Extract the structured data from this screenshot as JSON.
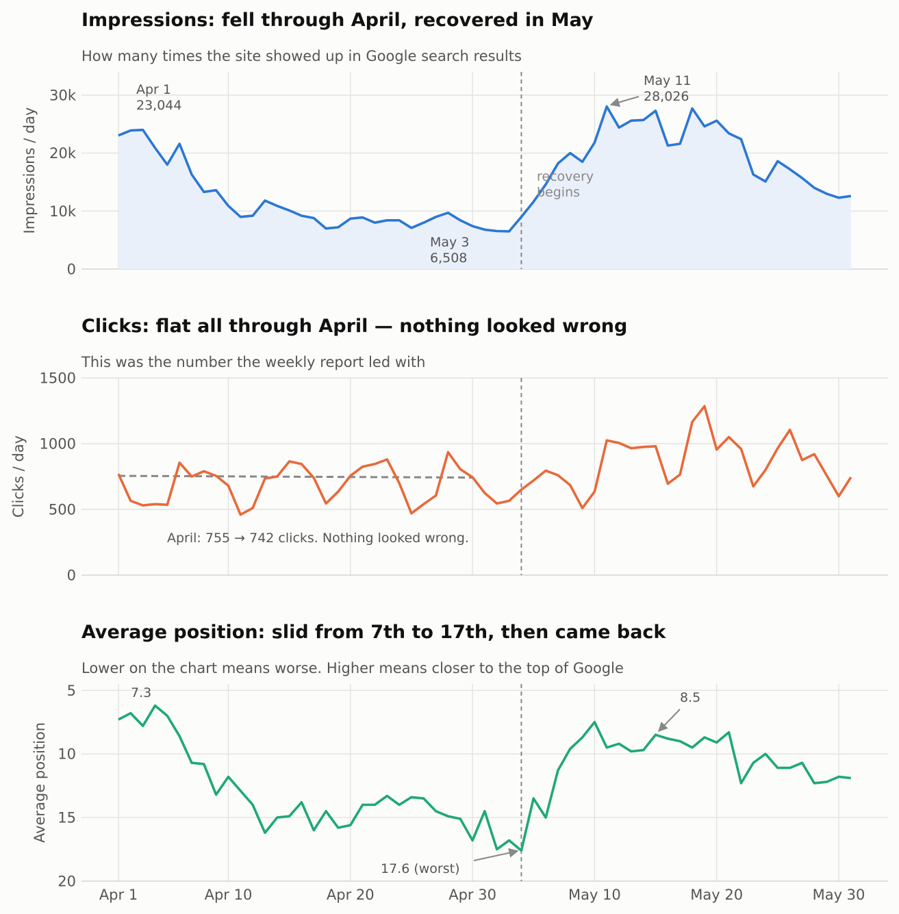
{
  "chart_data": [
    {
      "type": "area",
      "title": "Impressions: fell through April, recovered in May",
      "subtitle": "How many times the site showed up in Google search results",
      "ylabel": "Impressions / day",
      "ylim": [
        0,
        34000
      ],
      "yticks": [
        0,
        10000,
        20000,
        30000
      ],
      "ytick_labels": [
        "0",
        "10k",
        "20k",
        "30k"
      ],
      "xticks": [
        "Apr 1",
        "Apr 10",
        "Apr 20",
        "Apr 30",
        "May 10",
        "May 20",
        "May 30"
      ],
      "color": "#2c77d4",
      "fill_color": "#eaf0fa",
      "grid": true,
      "event_line_x": "May 4",
      "series": [
        {
          "x": [
            "Apr 1",
            "Apr 2",
            "Apr 3",
            "Apr 4",
            "Apr 5",
            "Apr 6",
            "Apr 7",
            "Apr 8",
            "Apr 9",
            "Apr 10",
            "Apr 11",
            "Apr 12",
            "Apr 13",
            "Apr 14",
            "Apr 15",
            "Apr 16",
            "Apr 17",
            "Apr 18",
            "Apr 19",
            "Apr 20",
            "Apr 21",
            "Apr 22",
            "Apr 23",
            "Apr 24",
            "Apr 25",
            "Apr 26",
            "Apr 27",
            "Apr 28",
            "Apr 29",
            "Apr 30",
            "May 1",
            "May 2",
            "May 3",
            "May 4",
            "May 5",
            "May 6",
            "May 7",
            "May 8",
            "May 9",
            "May 10",
            "May 11",
            "May 12",
            "May 13",
            "May 14",
            "May 15",
            "May 16",
            "May 17",
            "May 18",
            "May 19",
            "May 20",
            "May 21",
            "May 22",
            "May 23",
            "May 24",
            "May 25",
            "May 26",
            "May 27",
            "May 28",
            "May 29",
            "May 30",
            "May 31"
          ],
          "values": [
            23044,
            23900,
            24000,
            20900,
            18000,
            21600,
            16300,
            13300,
            13600,
            10900,
            9000,
            9200,
            11800,
            10900,
            10100,
            9200,
            8800,
            7000,
            7200,
            8700,
            8900,
            8000,
            8400,
            8400,
            7100,
            8000,
            9000,
            9700,
            8400,
            7400,
            6800,
            6550,
            6508,
            9000,
            11600,
            14600,
            18200,
            20000,
            18500,
            21800,
            28026,
            24400,
            25600,
            25700,
            27300,
            21300,
            21600,
            27700,
            24600,
            25600,
            23400,
            22400,
            16300,
            15100,
            18600,
            17200,
            15700,
            14000,
            13000,
            12300,
            12600
          ]
        }
      ],
      "annotations": [
        {
          "label": "Apr 1",
          "value": "23,044"
        },
        {
          "label": "May 11",
          "value": "28,026"
        },
        {
          "label": "May 3",
          "value": "6,508"
        },
        {
          "label": "recovery",
          "value": "begins"
        }
      ]
    },
    {
      "type": "line",
      "title": "Clicks: flat all through April — nothing looked wrong",
      "subtitle": "This was the number the weekly report led with",
      "ylabel": "Clicks / day",
      "ylim": [
        0,
        1500
      ],
      "yticks": [
        0,
        500,
        1000,
        1500
      ],
      "ytick_labels": [
        "0",
        "500",
        "1000",
        "1500"
      ],
      "xticks": [
        "Apr 1",
        "Apr 10",
        "Apr 20",
        "Apr 30",
        "May 10",
        "May 20",
        "May 30"
      ],
      "color": "#e8693a",
      "trend_color": "#888888",
      "grid": true,
      "event_line_x": "May 4",
      "trend": {
        "x": [
          "Apr 1",
          "Apr 30"
        ],
        "values": [
          755,
          742
        ]
      },
      "series": [
        {
          "x": [
            "Apr 1",
            "Apr 2",
            "Apr 3",
            "Apr 4",
            "Apr 5",
            "Apr 6",
            "Apr 7",
            "Apr 8",
            "Apr 9",
            "Apr 10",
            "Apr 11",
            "Apr 12",
            "Apr 13",
            "Apr 14",
            "Apr 15",
            "Apr 16",
            "Apr 17",
            "Apr 18",
            "Apr 19",
            "Apr 20",
            "Apr 21",
            "Apr 22",
            "Apr 23",
            "Apr 24",
            "Apr 25",
            "Apr 26",
            "Apr 27",
            "Apr 28",
            "Apr 29",
            "Apr 30",
            "May 1",
            "May 2",
            "May 3",
            "May 4",
            "May 5",
            "May 6",
            "May 7",
            "May 8",
            "May 9",
            "May 10",
            "May 11",
            "May 12",
            "May 13",
            "May 14",
            "May 15",
            "May 16",
            "May 17",
            "May 18",
            "May 19",
            "May 20",
            "May 21",
            "May 22",
            "May 23",
            "May 24",
            "May 25",
            "May 26",
            "May 27",
            "May 28",
            "May 29",
            "May 30",
            "May 31"
          ],
          "values": [
            770,
            565,
            530,
            540,
            535,
            855,
            750,
            790,
            755,
            680,
            460,
            510,
            735,
            750,
            865,
            845,
            740,
            545,
            635,
            755,
            825,
            845,
            880,
            700,
            470,
            540,
            605,
            935,
            805,
            745,
            625,
            545,
            565,
            650,
            720,
            795,
            760,
            685,
            510,
            635,
            1025,
            1005,
            965,
            975,
            980,
            695,
            765,
            1165,
            1285,
            955,
            1050,
            960,
            675,
            800,
            965,
            1105,
            875,
            920,
            760,
            600,
            745
          ]
        }
      ],
      "annotations": [
        {
          "text": "April: 755 → 742 clicks. Nothing looked wrong."
        }
      ]
    },
    {
      "type": "line",
      "title": "Average position: slid from 7th to 17th, then came back",
      "subtitle": "Lower on the chart means worse. Higher means closer to the top of Google",
      "ylabel": "Average position",
      "ylim": [
        20,
        4.5
      ],
      "y_inverted": true,
      "yticks": [
        5,
        10,
        15,
        20
      ],
      "ytick_labels": [
        "5",
        "10",
        "15",
        "20"
      ],
      "xticks": [
        "Apr 1",
        "Apr 10",
        "Apr 20",
        "Apr 30",
        "May 10",
        "May 20",
        "May 30"
      ],
      "color": "#1fa878",
      "grid": true,
      "event_line_x": "May 4",
      "series": [
        {
          "x": [
            "Apr 1",
            "Apr 2",
            "Apr 3",
            "Apr 4",
            "Apr 5",
            "Apr 6",
            "Apr 7",
            "Apr 8",
            "Apr 9",
            "Apr 10",
            "Apr 11",
            "Apr 12",
            "Apr 13",
            "Apr 14",
            "Apr 15",
            "Apr 16",
            "Apr 17",
            "Apr 18",
            "Apr 19",
            "Apr 20",
            "Apr 21",
            "Apr 22",
            "Apr 23",
            "Apr 24",
            "Apr 25",
            "Apr 26",
            "Apr 27",
            "Apr 28",
            "Apr 29",
            "Apr 30",
            "May 1",
            "May 2",
            "May 3",
            "May 4",
            "May 5",
            "May 6",
            "May 7",
            "May 8",
            "May 9",
            "May 10",
            "May 11",
            "May 12",
            "May 13",
            "May 14",
            "May 15",
            "May 16",
            "May 17",
            "May 18",
            "May 19",
            "May 20",
            "May 21",
            "May 22",
            "May 23",
            "May 24",
            "May 25",
            "May 26",
            "May 27",
            "May 28",
            "May 29",
            "May 30",
            "May 31"
          ],
          "values": [
            7.3,
            6.8,
            7.8,
            6.2,
            7.0,
            8.6,
            10.7,
            10.8,
            13.2,
            11.8,
            12.9,
            14.0,
            16.2,
            15.0,
            14.9,
            13.8,
            16.0,
            14.5,
            15.8,
            15.6,
            14.0,
            14.0,
            13.3,
            14.0,
            13.4,
            13.5,
            14.5,
            14.9,
            15.1,
            16.8,
            14.5,
            17.5,
            16.8,
            17.6,
            13.5,
            15.0,
            11.3,
            9.6,
            8.7,
            7.5,
            9.5,
            9.2,
            9.8,
            9.7,
            8.5,
            8.8,
            9.0,
            9.5,
            8.7,
            9.1,
            8.3,
            12.3,
            10.7,
            10.0,
            11.1,
            11.1,
            10.7,
            12.3,
            12.2,
            11.8,
            11.9
          ]
        }
      ],
      "annotations": [
        {
          "text": "7.3"
        },
        {
          "text": "8.5"
        },
        {
          "text": "17.6 (worst)"
        }
      ]
    }
  ]
}
